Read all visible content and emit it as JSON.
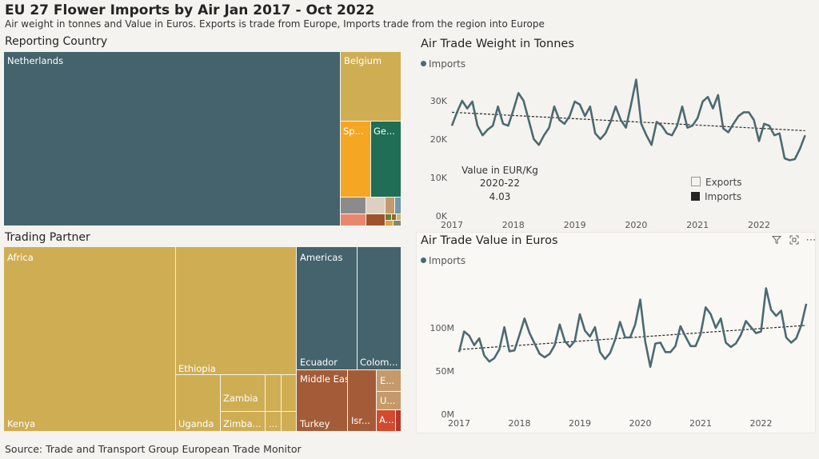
{
  "header": {
    "title": "EU 27 Flower Imports by Air Jan 2017 - Oct 2022",
    "subtitle": "Air weight in tonnes and Value in Euros. Exports is trade from Europe, Imports trade from the region into Europe"
  },
  "footer": {
    "source": "Source: Trade and Transport Group European Trade Monitor"
  },
  "reporting": {
    "title": "Reporting Country",
    "tiles": [
      {
        "label": "Netherlands",
        "color": "#44636c"
      },
      {
        "label": "Belgium",
        "color": "#cfad52"
      },
      {
        "label": "Sp...",
        "color": "#f5a623"
      },
      {
        "label": "Ge...",
        "color": "#1f6e55"
      },
      {
        "label": "",
        "color": "#8b8b8b"
      },
      {
        "label": "",
        "color": "#ddd0c2"
      },
      {
        "label": "",
        "color": "#c49a6c"
      },
      {
        "label": "",
        "color": "#6f9aa7"
      },
      {
        "label": "",
        "color": "#e8876e"
      },
      {
        "label": "",
        "color": "#a0522d"
      },
      {
        "label": "",
        "color": "#6b7a2f"
      }
    ]
  },
  "partner": {
    "title": "Trading Partner",
    "tiles": [
      {
        "label": "Africa",
        "color": "#cfad52"
      },
      {
        "label": "Kenya",
        "color": "#cfad52"
      },
      {
        "label": "Ethiopia",
        "color": "#cfad52"
      },
      {
        "label": "Uganda",
        "color": "#cfad52"
      },
      {
        "label": "Zambia",
        "color": "#cfad52"
      },
      {
        "label": "Zimba...",
        "color": "#cfad52"
      },
      {
        "label": "...",
        "color": "#cfad52"
      },
      {
        "label": "Americas",
        "color": "#44636c"
      },
      {
        "label": "Ecuador",
        "color": "#44636c"
      },
      {
        "label": "Colom...",
        "color": "#44636c"
      },
      {
        "label": "Middle East ...",
        "color": "#a45c38"
      },
      {
        "label": "Turkey",
        "color": "#a45c38"
      },
      {
        "label": "Isr...",
        "color": "#a45c38"
      },
      {
        "label": "E...",
        "color": "#c49a6c"
      },
      {
        "label": "U...",
        "color": "#c49a6c"
      },
      {
        "label": "A...",
        "color": "#d24b2f"
      }
    ]
  },
  "weight_panel": {
    "title": "Air Trade Weight in Tonnes",
    "legend": "Imports"
  },
  "value_panel": {
    "title": "Air Trade Value in Euros",
    "legend": "Imports"
  },
  "kpi": {
    "label": "Value in EUR/Kg",
    "period": "2020-22",
    "value": "4.03"
  },
  "flow_legend": {
    "items": [
      {
        "label": "Exports",
        "color": "#f5f3ef"
      },
      {
        "label": "Imports",
        "color": "#252423"
      }
    ]
  },
  "icons": [
    "filter-icon",
    "focus-mode-icon",
    "more-options-icon"
  ],
  "colors": {
    "line": "#4b6a72",
    "trend": "#252423"
  },
  "chart_data": [
    {
      "type": "line",
      "title": "Air Trade Weight in Tonnes",
      "series_name": "Imports",
      "ylim": [
        0,
        30000
      ],
      "yticks": [
        0,
        10000,
        20000,
        30000
      ],
      "ytick_labels": [
        "0K",
        "10K",
        "20K",
        "30K"
      ],
      "xticks": [
        "2017",
        "2018",
        "2019",
        "2020",
        "2021",
        "2022"
      ],
      "x_start": "2017-01",
      "values": [
        23500,
        27000,
        30000,
        28000,
        29800,
        23500,
        21000,
        22500,
        23500,
        28500,
        24000,
        23500,
        27500,
        32000,
        30000,
        25000,
        20000,
        18500,
        21000,
        23000,
        28500,
        25000,
        24000,
        26000,
        29800,
        29000,
        26000,
        28500,
        21500,
        20000,
        21500,
        24500,
        28500,
        25000,
        23000,
        29000,
        35500,
        24000,
        21000,
        18500,
        24500,
        23500,
        21500,
        21000,
        23500,
        28500,
        23000,
        23500,
        25500,
        29800,
        31000,
        28000,
        31500,
        22800,
        21800,
        24000,
        26000,
        27000,
        27000,
        25000,
        19500,
        24000,
        23500,
        21000,
        21500,
        15000,
        14500,
        14800,
        17500,
        21000
      ],
      "trend": [
        27000,
        22200
      ],
      "grid": false
    },
    {
      "type": "line",
      "title": "Air Trade Value in Euros",
      "series_name": "Imports",
      "ylim": [
        0,
        140000000
      ],
      "yticks": [
        0,
        50000000,
        100000000
      ],
      "ytick_labels": [
        "0M",
        "50M",
        "100M"
      ],
      "xticks": [
        "2017",
        "2018",
        "2019",
        "2020",
        "2021",
        "2022"
      ],
      "x_start": "2017-01",
      "values": [
        72000000,
        96000000,
        91000000,
        80000000,
        88000000,
        68000000,
        61000000,
        65000000,
        75000000,
        101000000,
        73000000,
        74000000,
        92000000,
        111000000,
        94000000,
        82000000,
        70000000,
        66000000,
        70000000,
        80000000,
        104000000,
        85000000,
        78000000,
        85000000,
        116000000,
        97000000,
        90000000,
        101000000,
        72000000,
        64000000,
        71000000,
        86000000,
        107000000,
        89000000,
        89000000,
        104000000,
        133000000,
        84000000,
        55000000,
        82000000,
        83000000,
        72000000,
        72000000,
        79000000,
        102000000,
        90000000,
        79000000,
        79000000,
        93000000,
        124000000,
        116000000,
        100000000,
        111000000,
        83000000,
        78000000,
        82000000,
        92000000,
        108000000,
        101000000,
        94000000,
        96000000,
        146000000,
        121000000,
        114000000,
        120000000,
        89000000,
        83000000,
        88000000,
        103000000,
        128000000
      ],
      "trend": [
        75000000,
        103000000
      ],
      "grid": false
    }
  ]
}
